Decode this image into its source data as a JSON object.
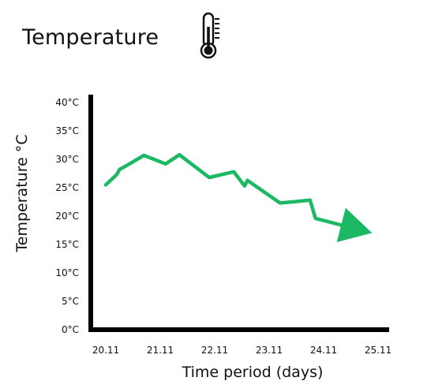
{
  "header": {
    "title": "Temperature",
    "icon": "thermometer-icon"
  },
  "chart_data": {
    "type": "line",
    "title": "",
    "xlabel": "Time period (days)",
    "ylabel": "Temperature °C",
    "x_ticks": [
      "20.11",
      "21.11",
      "22.11",
      "23.11",
      "24.11",
      "25.11"
    ],
    "y_ticks": [
      "0°C",
      "5°C",
      "10°C",
      "15°C",
      "20°C",
      "25°C",
      "30°C",
      "35°C",
      "40°C"
    ],
    "ylim": [
      0,
      40
    ],
    "xlim": [
      0,
      5
    ],
    "grid": false,
    "line_color": "#1db864",
    "series": [
      {
        "x": [
          0.0,
          0.2,
          0.25,
          0.4,
          0.7,
          1.1,
          1.35,
          1.9,
          2.35,
          2.55,
          2.6,
          3.2,
          3.75,
          3.85,
          4.7
        ],
        "y": [
          25.5,
          27.3,
          28.2,
          29.0,
          30.7,
          29.2,
          30.8,
          26.8,
          27.8,
          25.3,
          26.3,
          22.3,
          22.8,
          19.6,
          17.5
        ]
      }
    ]
  }
}
